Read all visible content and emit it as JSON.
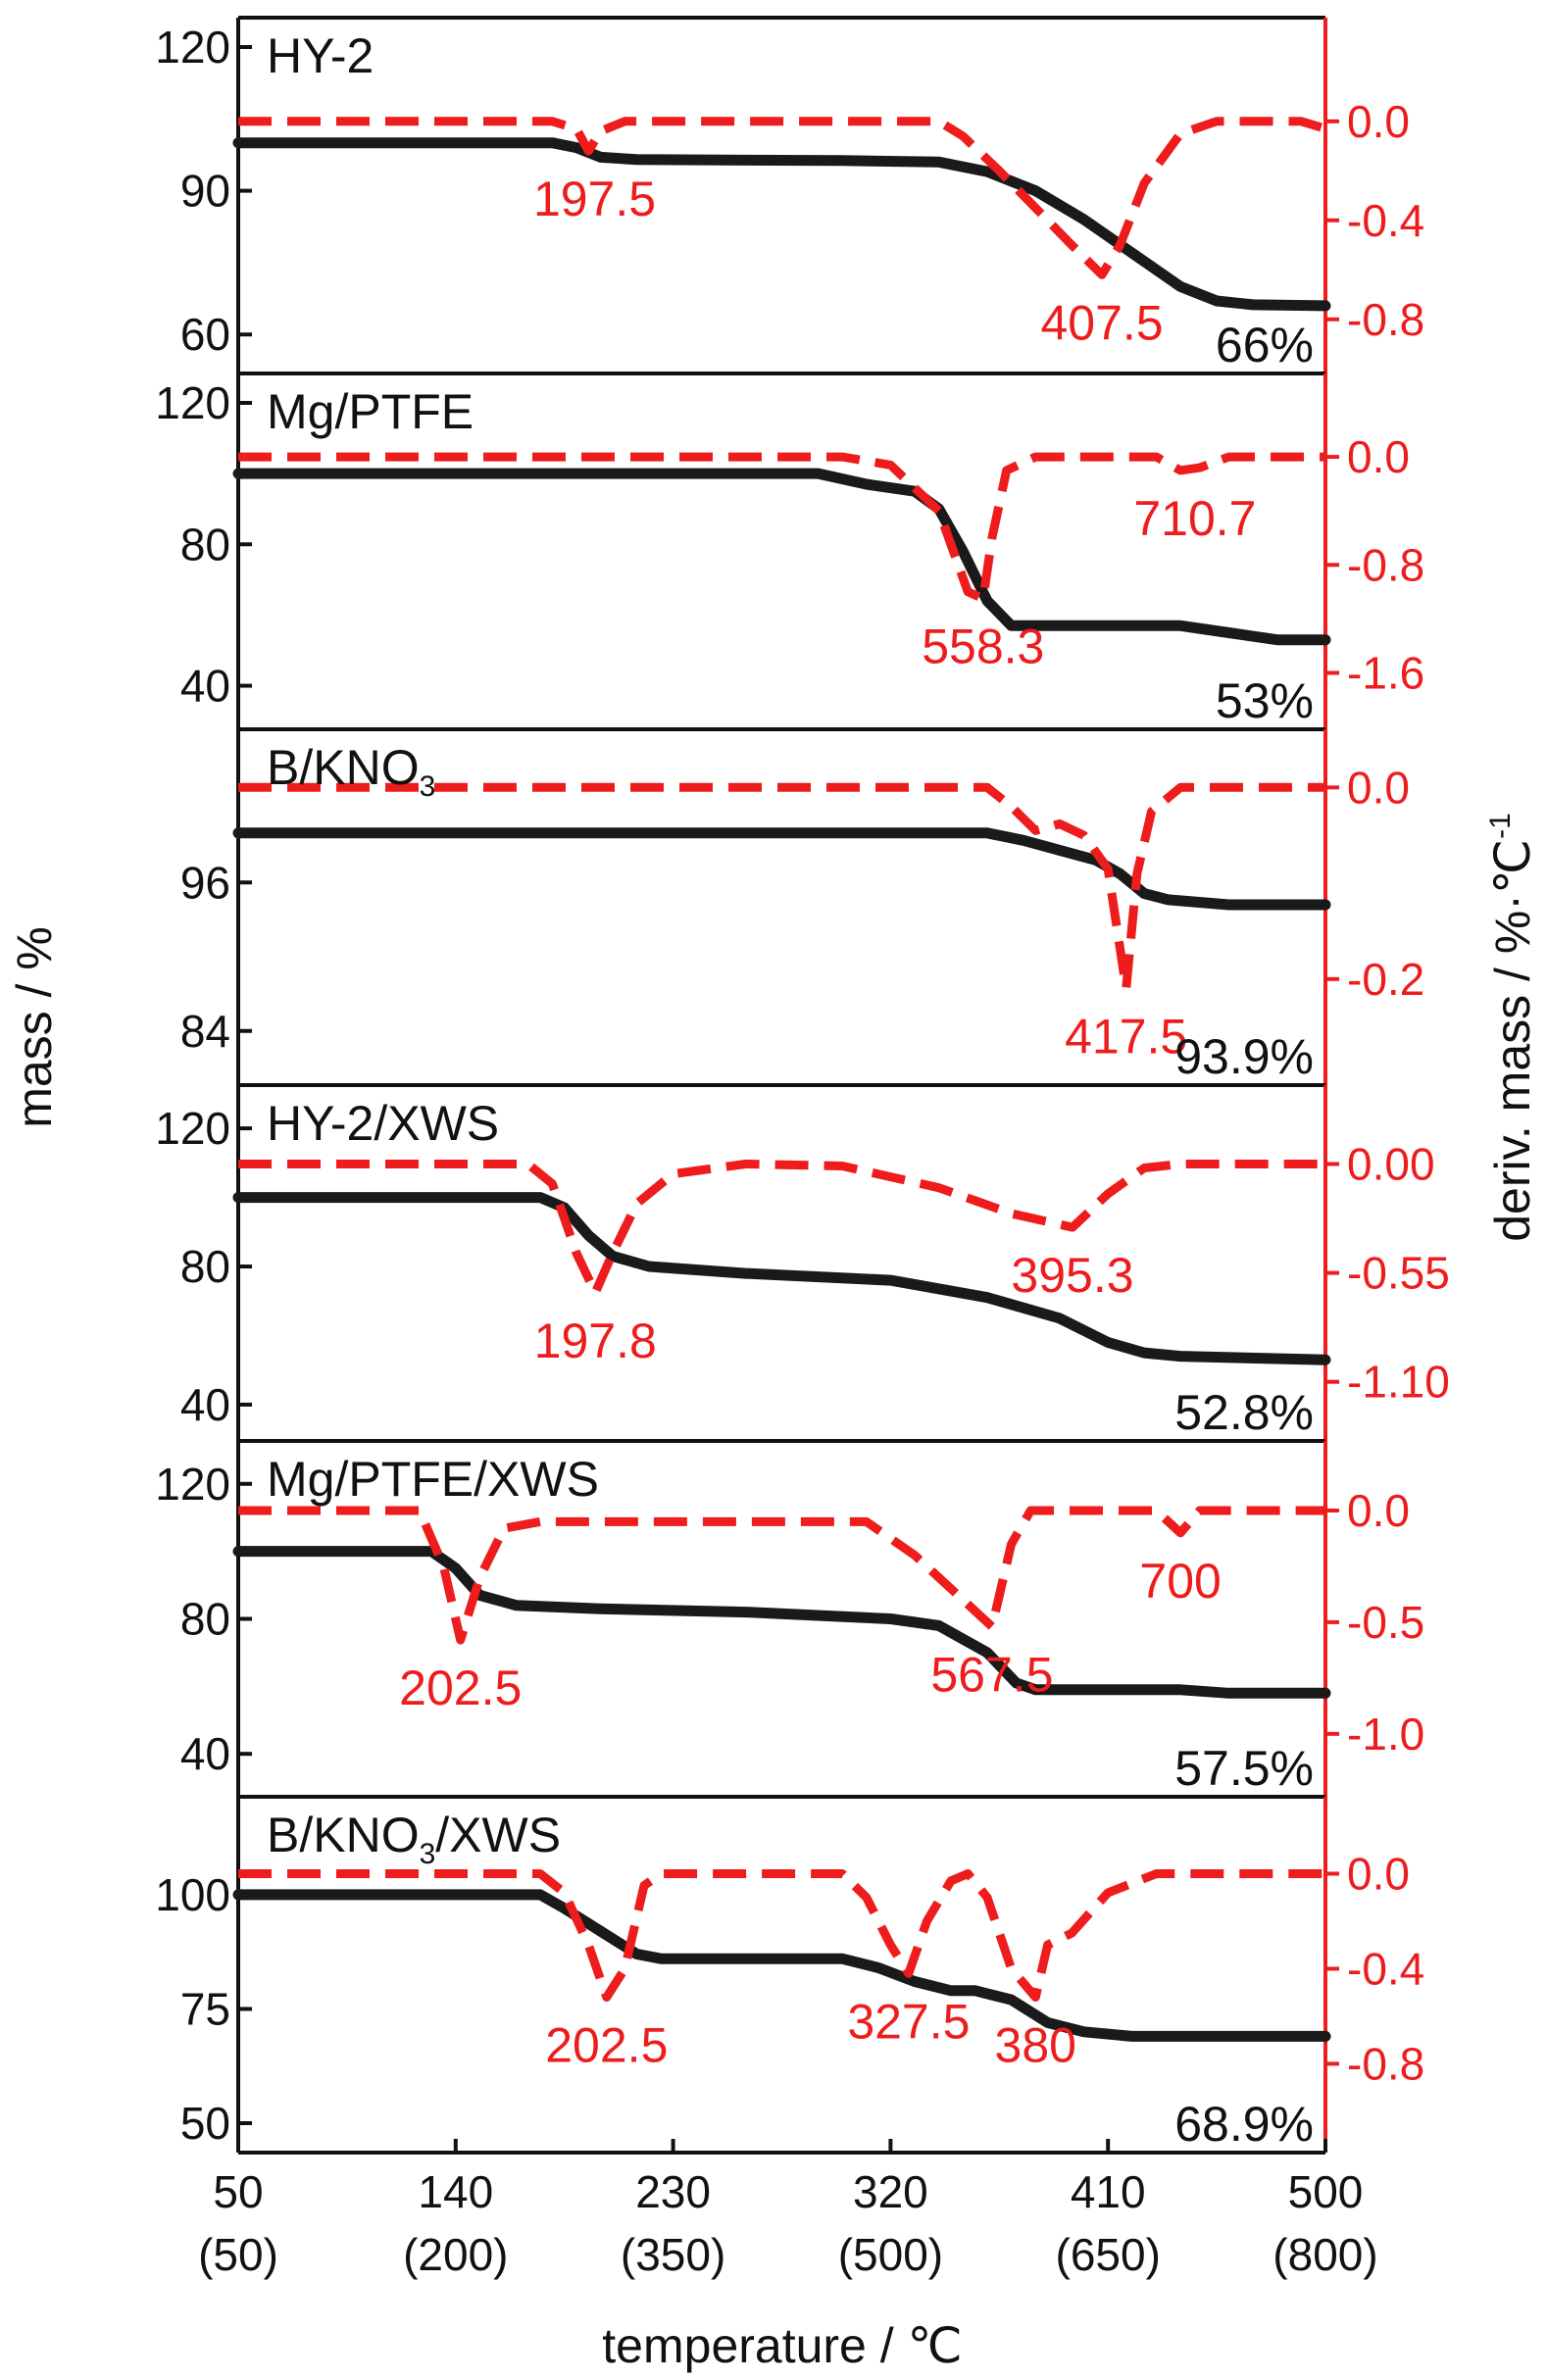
{
  "chart_data": {
    "type": "line",
    "colors": {
      "mass": "#1a1a1a",
      "deriv": "#ee1c1c"
    },
    "shared_axes": {
      "xlabel": "temperature / ℃",
      "left_ylabel": "mass / %",
      "right_ylabel": "deriv. mass / %·℃",
      "right_ylabel_sup": "-1",
      "x_ticks": [
        {
          "value": 50,
          "label": "50",
          "sub": "(50)"
        },
        {
          "value": 140,
          "label": "140",
          "sub": "(200)"
        },
        {
          "value": 230,
          "label": "230",
          "sub": "(350)"
        },
        {
          "value": 320,
          "label": "320",
          "sub": "(500)"
        },
        {
          "value": 410,
          "label": "410",
          "sub": "(650)"
        },
        {
          "value": 500,
          "label": "500",
          "sub": "(800)"
        }
      ],
      "xlim": [
        50,
        500
      ]
    },
    "panels": [
      {
        "title": "HY-2",
        "title_sub": "",
        "title_rest": "",
        "ylim_left": [
          58,
          120
        ],
        "yticks_left": [
          60,
          90,
          120
        ],
        "ylim_right": [
          -0.9,
          0.3
        ],
        "yticks_right": [
          0.0,
          -0.4,
          -0.8
        ],
        "yticklabels_right": [
          "0.0",
          "-0.4",
          "-0.8"
        ],
        "mass_series": [
          [
            50,
            100
          ],
          [
            180,
            100
          ],
          [
            190,
            99
          ],
          [
            200,
            97
          ],
          [
            215,
            96.5
          ],
          [
            300,
            96.3
          ],
          [
            340,
            96
          ],
          [
            360,
            94
          ],
          [
            380,
            90
          ],
          [
            400,
            84
          ],
          [
            420,
            77
          ],
          [
            440,
            70
          ],
          [
            455,
            67
          ],
          [
            470,
            66.2
          ],
          [
            500,
            66
          ]
        ],
        "deriv_series": [
          [
            50,
            0.0
          ],
          [
            180,
            0.0
          ],
          [
            190,
            -0.03
          ],
          [
            195,
            -0.12
          ],
          [
            200,
            -0.04
          ],
          [
            210,
            0.0
          ],
          [
            340,
            0.0
          ],
          [
            350,
            -0.06
          ],
          [
            365,
            -0.2
          ],
          [
            380,
            -0.35
          ],
          [
            395,
            -0.5
          ],
          [
            407.5,
            -0.62
          ],
          [
            415,
            -0.5
          ],
          [
            425,
            -0.25
          ],
          [
            440,
            -0.05
          ],
          [
            455,
            0.0
          ],
          [
            490,
            0.0
          ],
          [
            500,
            -0.03
          ]
        ],
        "peaks": [
          {
            "label": "197.5",
            "x": 197.5,
            "y": -0.12
          },
          {
            "label": "407.5",
            "x": 407.5,
            "y": -0.62
          }
        ],
        "residue": "66%"
      },
      {
        "title": "Mg/PTFE",
        "title_sub": "",
        "title_rest": "",
        "ylim_left": [
          36,
          120
        ],
        "yticks_left": [
          40,
          80,
          120
        ],
        "ylim_right": [
          -1.8,
          0.4
        ],
        "yticks_right": [
          0.0,
          -0.8,
          -1.6
        ],
        "yticklabels_right": [
          "0.0",
          "-0.8",
          "-1.6"
        ],
        "mass_series": [
          [
            50,
            100
          ],
          [
            290,
            100
          ],
          [
            310,
            97
          ],
          [
            330,
            95
          ],
          [
            340,
            90
          ],
          [
            350,
            78
          ],
          [
            360,
            64
          ],
          [
            370,
            57
          ],
          [
            380,
            57
          ],
          [
            440,
            57
          ],
          [
            460,
            55
          ],
          [
            480,
            53
          ],
          [
            500,
            53
          ]
        ],
        "deriv_series": [
          [
            50,
            0.0
          ],
          [
            300,
            0.0
          ],
          [
            320,
            -0.06
          ],
          [
            340,
            -0.4
          ],
          [
            352,
            -1.0
          ],
          [
            358.3,
            -1.05
          ],
          [
            362,
            -0.6
          ],
          [
            368,
            -0.1
          ],
          [
            380,
            0.0
          ],
          [
            430,
            0.0
          ],
          [
            440,
            -0.1
          ],
          [
            448,
            -0.08
          ],
          [
            460,
            0.0
          ],
          [
            500,
            0.0
          ]
        ],
        "peaks": [
          {
            "label": "558.3",
            "x": 358.3,
            "y": -1.05
          },
          {
            "label": "710.7",
            "x": 446,
            "y": -0.1
          }
        ],
        "residue": "53%"
      },
      {
        "title": "B/KNO",
        "title_sub": "3",
        "title_rest": "",
        "ylim_left": [
          82,
          106
        ],
        "yticks_left": [
          84,
          96
        ],
        "ylim_right": [
          -0.28,
          0.03
        ],
        "yticks_right": [
          0.0,
          -0.2
        ],
        "yticklabels_right": [
          "0.0",
          "-0.2"
        ],
        "mass_series": [
          [
            50,
            100
          ],
          [
            360,
            100
          ],
          [
            375,
            99.4
          ],
          [
            390,
            98.6
          ],
          [
            405,
            97.8
          ],
          [
            415,
            96.7
          ],
          [
            425,
            95.1
          ],
          [
            435,
            94.6
          ],
          [
            460,
            94.2
          ],
          [
            500,
            94.2
          ]
        ],
        "deriv_series": [
          [
            50,
            0.0
          ],
          [
            360,
            0.0
          ],
          [
            370,
            -0.02
          ],
          [
            380,
            -0.045
          ],
          [
            390,
            -0.038
          ],
          [
            400,
            -0.05
          ],
          [
            410,
            -0.085
          ],
          [
            417.5,
            -0.21
          ],
          [
            422,
            -0.09
          ],
          [
            428,
            -0.025
          ],
          [
            440,
            0.0
          ],
          [
            500,
            0.0
          ]
        ],
        "peaks": [
          {
            "label": "417.5",
            "x": 417.5,
            "y": -0.21
          }
        ],
        "residue": "93.9%"
      },
      {
        "title": "HY-2/XWS",
        "title_sub": "",
        "title_rest": "",
        "ylim_left": [
          38,
          124
        ],
        "yticks_left": [
          40,
          80,
          120
        ],
        "ylim_right": [
          -1.25,
          0.25
        ],
        "yticks_right": [
          0.0,
          -0.55,
          -1.1
        ],
        "yticklabels_right": [
          "0.00",
          "-0.55",
          "-1.10"
        ],
        "mass_series": [
          [
            50,
            100
          ],
          [
            175,
            100
          ],
          [
            185,
            97
          ],
          [
            195,
            89
          ],
          [
            205,
            83
          ],
          [
            220,
            80
          ],
          [
            260,
            78
          ],
          [
            320,
            76
          ],
          [
            360,
            71
          ],
          [
            390,
            65
          ],
          [
            410,
            58
          ],
          [
            425,
            55
          ],
          [
            440,
            54
          ],
          [
            500,
            53
          ]
        ],
        "deriv_series": [
          [
            50,
            0.0
          ],
          [
            170,
            0.0
          ],
          [
            180,
            -0.1
          ],
          [
            190,
            -0.45
          ],
          [
            197.8,
            -0.65
          ],
          [
            205,
            -0.45
          ],
          [
            215,
            -0.2
          ],
          [
            230,
            -0.05
          ],
          [
            260,
            0.0
          ],
          [
            300,
            -0.01
          ],
          [
            340,
            -0.12
          ],
          [
            370,
            -0.25
          ],
          [
            395.3,
            -0.32
          ],
          [
            410,
            -0.15
          ],
          [
            425,
            -0.02
          ],
          [
            440,
            0.0
          ],
          [
            500,
            0.0
          ]
        ],
        "peaks": [
          {
            "label": "197.8",
            "x": 197.8,
            "y": -0.65
          },
          {
            "label": "395.3",
            "x": 395.3,
            "y": -0.32
          }
        ],
        "residue": "52.8%"
      },
      {
        "title": "Mg/PTFE/XWS",
        "title_sub": "",
        "title_rest": "",
        "ylim_left": [
          36,
          124
        ],
        "yticks_left": [
          40,
          80,
          120
        ],
        "ylim_right": [
          -1.15,
          0.18
        ],
        "yticks_right": [
          0.0,
          -0.5,
          -1.0
        ],
        "yticklabels_right": [
          "0.0",
          "-0.5",
          "-1.0"
        ],
        "mass_series": [
          [
            50,
            100
          ],
          [
            130,
            100
          ],
          [
            140,
            95
          ],
          [
            150,
            87
          ],
          [
            165,
            84
          ],
          [
            200,
            83
          ],
          [
            260,
            82
          ],
          [
            320,
            80
          ],
          [
            340,
            78
          ],
          [
            360,
            70
          ],
          [
            372,
            61
          ],
          [
            380,
            59
          ],
          [
            440,
            59
          ],
          [
            460,
            58
          ],
          [
            500,
            58
          ]
        ],
        "deriv_series": [
          [
            50,
            0.0
          ],
          [
            125,
            0.0
          ],
          [
            135,
            -0.25
          ],
          [
            142,
            -0.58
          ],
          [
            150,
            -0.3
          ],
          [
            160,
            -0.08
          ],
          [
            175,
            -0.05
          ],
          [
            200,
            -0.05
          ],
          [
            310,
            -0.05
          ],
          [
            330,
            -0.2
          ],
          [
            350,
            -0.4
          ],
          [
            362,
            -0.52
          ],
          [
            370,
            -0.15
          ],
          [
            378,
            0.0
          ],
          [
            430,
            0.0
          ],
          [
            440,
            -0.1
          ],
          [
            448,
            0.0
          ],
          [
            500,
            0.0
          ]
        ],
        "peaks": [
          {
            "label": "202.5",
            "x": 142,
            "y": -0.58
          },
          {
            "label": "567.5",
            "x": 362,
            "y": -0.52
          },
          {
            "label": "700",
            "x": 440,
            "y": -0.1
          }
        ],
        "residue": "57.5%"
      },
      {
        "title": "B/KNO",
        "title_sub": "3",
        "title_rest": "/XWS",
        "ylim_left": [
          50,
          115
        ],
        "yticks_left": [
          50,
          75,
          100
        ],
        "ylim_right": [
          -1.05,
          0.2
        ],
        "yticks_right": [
          0.0,
          -0.4,
          -0.8
        ],
        "yticklabels_right": [
          "0.0",
          "-0.4",
          "-0.8"
        ],
        "mass_series": [
          [
            50,
            100
          ],
          [
            175,
            100
          ],
          [
            185,
            97
          ],
          [
            200,
            92
          ],
          [
            215,
            87
          ],
          [
            225,
            86
          ],
          [
            300,
            86
          ],
          [
            315,
            84
          ],
          [
            330,
            81
          ],
          [
            345,
            79
          ],
          [
            355,
            79
          ],
          [
            370,
            77
          ],
          [
            385,
            72
          ],
          [
            400,
            70
          ],
          [
            420,
            69
          ],
          [
            500,
            69
          ]
        ],
        "deriv_series": [
          [
            50,
            0.0
          ],
          [
            175,
            0.0
          ],
          [
            185,
            -0.08
          ],
          [
            195,
            -0.3
          ],
          [
            202.5,
            -0.52
          ],
          [
            210,
            -0.4
          ],
          [
            218,
            -0.05
          ],
          [
            225,
            0.0
          ],
          [
            300,
            0.0
          ],
          [
            310,
            -0.1
          ],
          [
            320,
            -0.3
          ],
          [
            327.5,
            -0.42
          ],
          [
            335,
            -0.2
          ],
          [
            345,
            -0.03
          ],
          [
            352,
            0.0
          ],
          [
            360,
            -0.1
          ],
          [
            370,
            -0.4
          ],
          [
            380,
            -0.52
          ],
          [
            385,
            -0.3
          ],
          [
            395,
            -0.25
          ],
          [
            410,
            -0.08
          ],
          [
            430,
            0.0
          ],
          [
            500,
            0.0
          ]
        ],
        "peaks": [
          {
            "label": "202.5",
            "x": 202.5,
            "y": -0.52
          },
          {
            "label": "327.5",
            "x": 327.5,
            "y": -0.42
          },
          {
            "label": "380",
            "x": 380,
            "y": -0.52
          }
        ],
        "residue": "68.9%"
      }
    ]
  }
}
